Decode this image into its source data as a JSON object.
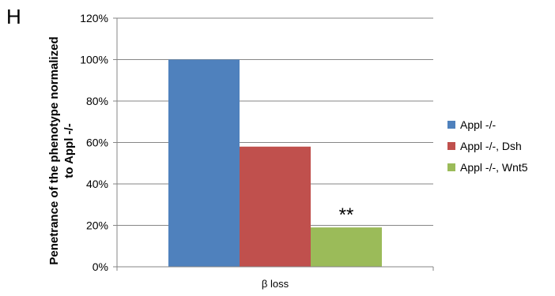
{
  "panel_label": "H",
  "chart_data": {
    "type": "bar",
    "categories": [
      "β loss"
    ],
    "series": [
      {
        "name": "Appl -/-",
        "values": [
          100
        ],
        "color": "#4F81BD"
      },
      {
        "name": "Appl -/-, Dsh",
        "values": [
          58
        ],
        "color": "#C0504D"
      },
      {
        "name": "Appl -/-, Wnt5",
        "values": [
          19
        ],
        "color": "#9BBB59"
      }
    ],
    "ylabel_lines": [
      "Penetrance of the phenotype normalized",
      "to Appl -/-"
    ],
    "ylim": [
      0,
      120
    ],
    "yticks": [
      0,
      20,
      40,
      60,
      80,
      100,
      120
    ],
    "ytick_labels": [
      "0%",
      "20%",
      "40%",
      "60%",
      "80%",
      "100%",
      "120%"
    ],
    "grid": true,
    "legend_position": "right",
    "annotations": [
      {
        "text": "**",
        "series": "Appl -/-, Wnt5"
      }
    ]
  }
}
